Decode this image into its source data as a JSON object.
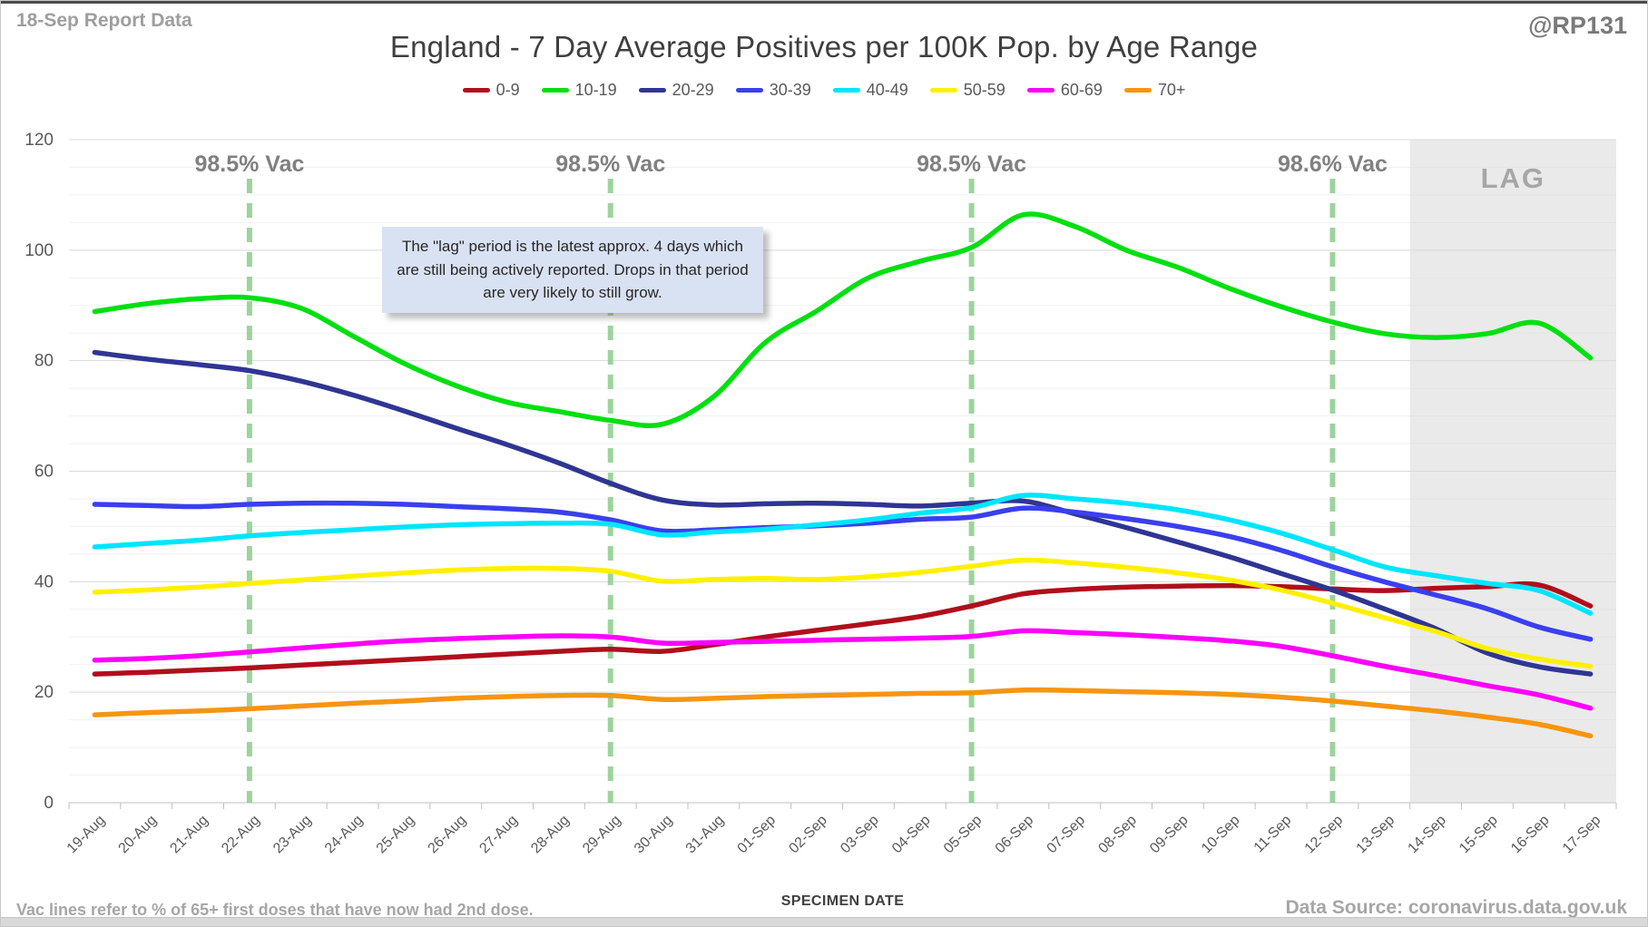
{
  "header": {
    "report_label": "18-Sep Report Data",
    "handle": "@RP131"
  },
  "title": "England - 7 Day Average Positives per 100K Pop. by Age Range",
  "footer": {
    "note": "Vac lines refer to % of 65+ first doses that have now had 2nd dose.",
    "data_source": "Data Source: coronavirus.data.gov.uk"
  },
  "chart_data": {
    "type": "line",
    "title": "England - 7 Day Average Positives per 100K Pop. by Age Range",
    "xlabel": "SPECIMEN DATE",
    "ylabel": "",
    "ylim": [
      0,
      120
    ],
    "y_tick_step": 20,
    "y_minor_step": 5,
    "grid": true,
    "legend_position": "top",
    "categories": [
      "19-Aug",
      "20-Aug",
      "21-Aug",
      "22-Aug",
      "23-Aug",
      "24-Aug",
      "25-Aug",
      "26-Aug",
      "27-Aug",
      "28-Aug",
      "29-Aug",
      "30-Aug",
      "31-Aug",
      "01-Sep",
      "02-Sep",
      "03-Sep",
      "04-Sep",
      "05-Sep",
      "06-Sep",
      "07-Sep",
      "08-Sep",
      "09-Sep",
      "10-Sep",
      "11-Sep",
      "12-Sep",
      "13-Sep",
      "14-Sep",
      "15-Sep",
      "16-Sep",
      "17-Sep"
    ],
    "series": [
      {
        "name": "0-9",
        "color": "#b10e1c",
        "values": [
          23.3,
          23.6,
          24.0,
          24.4,
          24.9,
          25.4,
          25.9,
          26.4,
          26.9,
          27.4,
          27.8,
          27.4,
          28.6,
          30.0,
          31.2,
          32.4,
          33.7,
          35.6,
          37.8,
          38.6,
          39.0,
          39.2,
          39.3,
          39.1,
          38.7,
          38.4,
          38.8,
          39.1,
          39.4,
          35.6
        ]
      },
      {
        "name": "10-19",
        "color": "#00e010",
        "values": [
          88.9,
          90.3,
          91.2,
          91.4,
          89.5,
          84.5,
          79.5,
          75.5,
          72.5,
          70.8,
          69.2,
          68.5,
          73.5,
          83.3,
          89.0,
          95.0,
          98.0,
          100.5,
          106.4,
          104.3,
          100.0,
          96.9,
          93.1,
          89.8,
          87.0,
          84.9,
          84.2,
          84.9,
          86.8,
          80.5
        ]
      },
      {
        "name": "20-29",
        "color": "#2f3593",
        "values": [
          81.5,
          80.3,
          79.3,
          78.2,
          76.3,
          73.8,
          70.9,
          67.8,
          64.8,
          61.5,
          57.8,
          54.8,
          53.9,
          54.1,
          54.2,
          54.0,
          53.7,
          54.2,
          54.6,
          52.3,
          49.8,
          47.2,
          44.5,
          41.5,
          38.5,
          35.1,
          31.5,
          27.1,
          24.6,
          23.3
        ]
      },
      {
        "name": "30-39",
        "color": "#3a3ff0",
        "values": [
          54.0,
          53.8,
          53.6,
          54.0,
          54.2,
          54.2,
          54.0,
          53.6,
          53.2,
          52.6,
          51.2,
          49.2,
          49.4,
          49.8,
          50.1,
          50.6,
          51.3,
          51.7,
          53.3,
          52.6,
          51.4,
          50.0,
          48.2,
          45.7,
          42.7,
          40.0,
          37.6,
          35.1,
          31.8,
          29.6
        ]
      },
      {
        "name": "40-49",
        "color": "#00e5ff",
        "values": [
          46.3,
          46.9,
          47.5,
          48.3,
          48.9,
          49.4,
          49.9,
          50.3,
          50.5,
          50.6,
          50.4,
          48.5,
          49.0,
          49.5,
          50.3,
          51.2,
          52.4,
          53.4,
          55.6,
          55.0,
          54.2,
          53.0,
          51.2,
          48.8,
          45.8,
          42.7,
          41.1,
          39.7,
          38.4,
          34.3
        ]
      },
      {
        "name": "50-59",
        "color": "#fff000",
        "values": [
          38.1,
          38.5,
          39.0,
          39.7,
          40.3,
          41.0,
          41.6,
          42.1,
          42.4,
          42.4,
          41.9,
          40.1,
          40.4,
          40.6,
          40.4,
          40.9,
          41.7,
          42.8,
          43.9,
          43.4,
          42.6,
          41.6,
          40.3,
          38.5,
          36.1,
          33.5,
          31.0,
          27.9,
          26.0,
          24.7
        ]
      },
      {
        "name": "60-69",
        "color": "#fc00fc",
        "values": [
          25.8,
          26.1,
          26.6,
          27.3,
          28.0,
          28.7,
          29.3,
          29.7,
          30.0,
          30.2,
          30.0,
          28.9,
          29.0,
          29.2,
          29.4,
          29.6,
          29.8,
          30.1,
          31.1,
          30.8,
          30.4,
          29.9,
          29.3,
          28.3,
          26.6,
          24.7,
          23.0,
          21.2,
          19.5,
          17.1
        ]
      },
      {
        "name": "70+",
        "color": "#f79510",
        "values": [
          15.9,
          16.3,
          16.6,
          17.0,
          17.5,
          18.0,
          18.4,
          18.9,
          19.2,
          19.4,
          19.4,
          18.7,
          18.9,
          19.2,
          19.4,
          19.6,
          19.8,
          19.9,
          20.4,
          20.3,
          20.1,
          19.9,
          19.6,
          19.1,
          18.4,
          17.5,
          16.6,
          15.5,
          14.2,
          12.1
        ]
      }
    ],
    "vac_lines": [
      {
        "category": "22-Aug",
        "index": 3,
        "label": "98.5% Vac"
      },
      {
        "category": "29-Aug",
        "index": 10,
        "label": "98.5% Vac"
      },
      {
        "category": "05-Sep",
        "index": 17,
        "label": "98.5% Vac"
      },
      {
        "category": "12-Sep",
        "index": 24,
        "label": "98.6% Vac"
      }
    ],
    "vac_line_color": "#92d092",
    "lag_region": {
      "label": "LAG",
      "start_category": "14-Sep",
      "start_index": 26,
      "fill": "#d9d9d9",
      "note": "The \"lag\" period is the latest approx. 4 days which are still being actively reported. Drops in that period are very likely to still grow."
    }
  }
}
